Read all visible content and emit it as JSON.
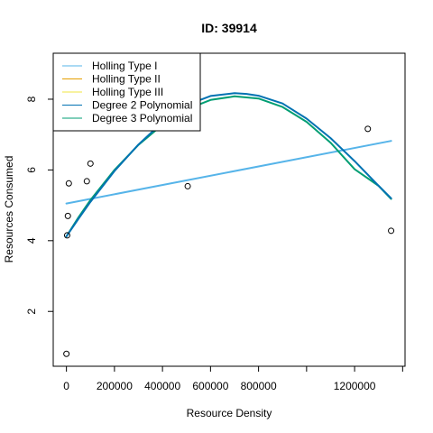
{
  "chart_data": {
    "type": "scatter",
    "title": "ID: 39914",
    "xlabel": "Resource Density",
    "ylabel": "Resources Consumed",
    "xlim": [
      -55000,
      1410000
    ],
    "ylim": [
      0.45,
      9.3
    ],
    "x_ticks": [
      0,
      200000,
      400000,
      600000,
      800000,
      1000000,
      1200000,
      1400000
    ],
    "x_tick_labels": [
      "0",
      "200000",
      "400000",
      "600000",
      "800000",
      "",
      "1200000",
      ""
    ],
    "y_ticks": [
      2,
      4,
      6,
      8
    ],
    "y_tick_labels": [
      "2",
      "4",
      "6",
      "8"
    ],
    "points": [
      {
        "x": 0,
        "y": 0.8
      },
      {
        "x": 3000,
        "y": 4.15
      },
      {
        "x": 6000,
        "y": 4.7
      },
      {
        "x": 10000,
        "y": 5.62
      },
      {
        "x": 85000,
        "y": 5.68
      },
      {
        "x": 100000,
        "y": 6.18
      },
      {
        "x": 505000,
        "y": 5.54
      },
      {
        "x": 1255000,
        "y": 7.16
      },
      {
        "x": 1352000,
        "y": 4.28
      }
    ],
    "legend": {
      "position": "top-left",
      "entries": [
        {
          "label": "Holling Type I",
          "color": "#56B4E9"
        },
        {
          "label": "Holling Type II",
          "color": "#E69F00"
        },
        {
          "label": "Holling Type III",
          "color": "#F0E442"
        },
        {
          "label": "Degree 2 Polynomial",
          "color": "#0072B2"
        },
        {
          "label": "Degree 3 Polynomial",
          "color": "#009E73"
        }
      ]
    },
    "series": [
      {
        "name": "Holling Type I",
        "color": "#56B4E9",
        "x": [
          0,
          1352000
        ],
        "y": [
          5.05,
          6.82
        ]
      },
      {
        "name": "Degree 3 Polynomial",
        "color": "#009E73",
        "x": [
          0,
          50000,
          100000,
          200000,
          300000,
          400000,
          500000,
          600000,
          700000,
          800000,
          900000,
          1000000,
          1100000,
          1200000,
          1300000,
          1352000
        ],
        "y": [
          4.12,
          4.66,
          5.15,
          6.0,
          6.71,
          7.28,
          7.71,
          7.98,
          8.08,
          8.02,
          7.78,
          7.36,
          6.77,
          6.02,
          5.55,
          5.18
        ]
      },
      {
        "name": "Degree 2 Polynomial",
        "color": "#0072B2",
        "x": [
          0,
          50000,
          100000,
          200000,
          300000,
          400000,
          500000,
          600000,
          700000,
          750000,
          800000,
          900000,
          1000000,
          1100000,
          1200000,
          1300000,
          1352000
        ],
        "y": [
          4.12,
          4.62,
          5.1,
          5.97,
          6.72,
          7.35,
          7.83,
          8.09,
          8.17,
          8.15,
          8.1,
          7.88,
          7.45,
          6.9,
          6.25,
          5.55,
          5.2
        ]
      }
    ]
  }
}
